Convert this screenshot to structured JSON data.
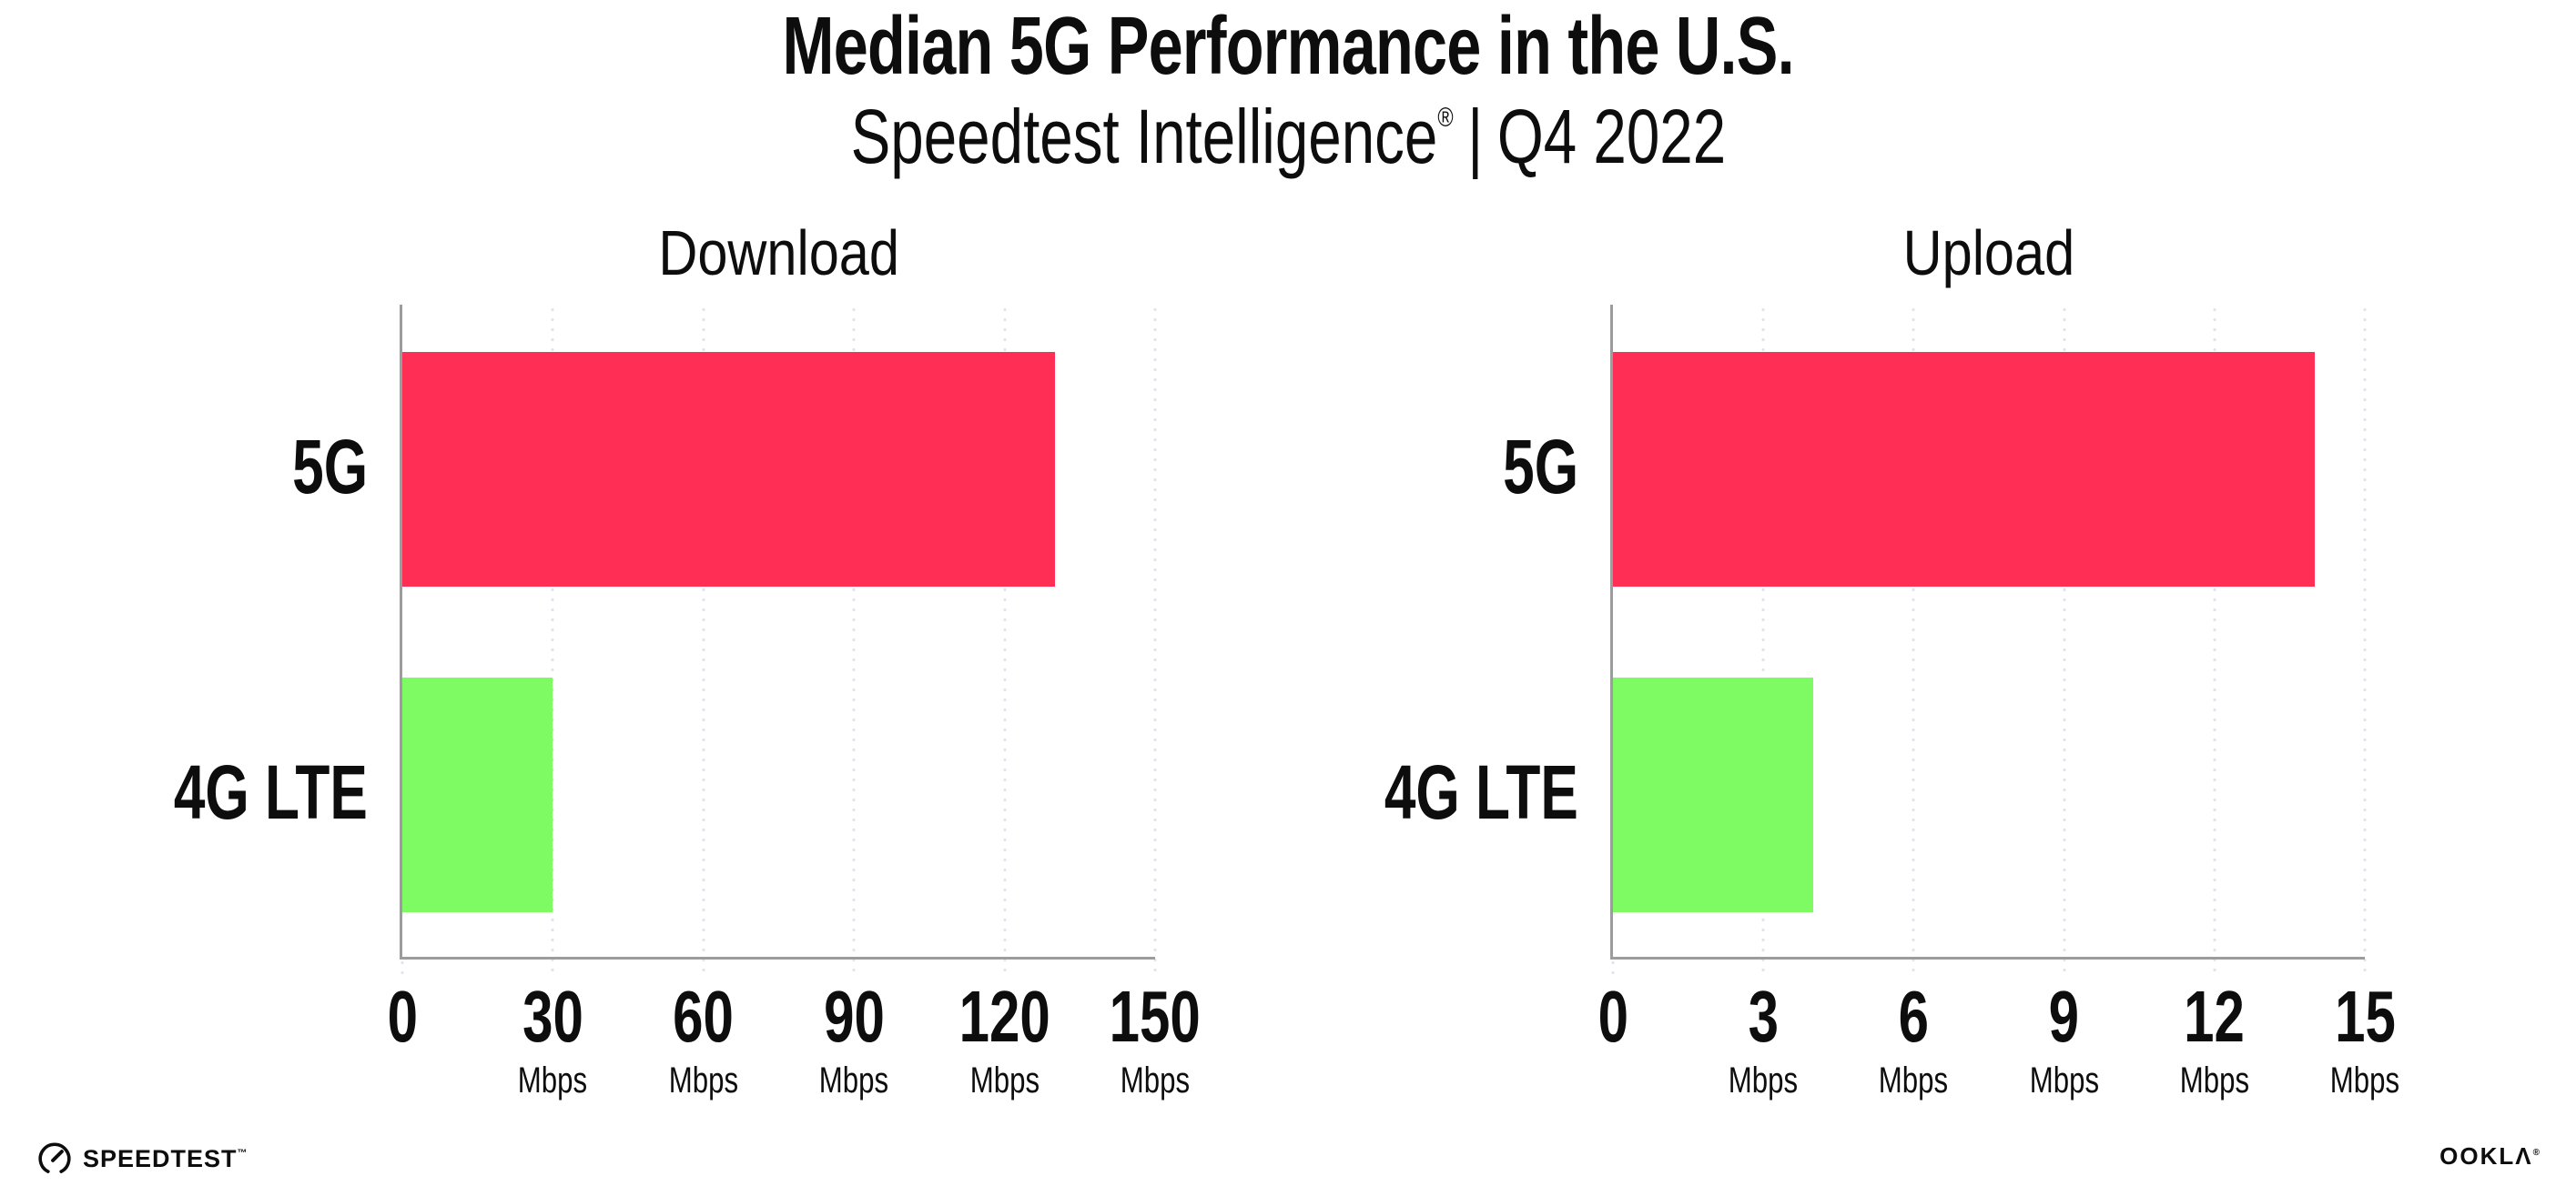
{
  "header": {
    "title": "Median 5G Performance in the U.S.",
    "brand": "Speedtest Intelligence",
    "brand_reg": "®",
    "separator": "|",
    "period": "Q4 2022"
  },
  "chart_data": [
    {
      "type": "bar",
      "orientation": "horizontal",
      "title": "Download",
      "categories": [
        "5G",
        "4G LTE"
      ],
      "values": [
        130,
        30
      ],
      "unit": "Mbps",
      "xlim": [
        0,
        150
      ],
      "xticks": [
        0,
        30,
        60,
        90,
        120,
        150
      ],
      "bar_colors": [
        "#fe2e55",
        "#7efb63"
      ],
      "grid": "vertical-dotted",
      "legend": "none"
    },
    {
      "type": "bar",
      "orientation": "horizontal",
      "title": "Upload",
      "categories": [
        "5G",
        "4G LTE"
      ],
      "values": [
        14,
        4
      ],
      "unit": "Mbps",
      "xlim": [
        0,
        15
      ],
      "xticks": [
        0,
        3,
        6,
        9,
        12,
        15
      ],
      "bar_colors": [
        "#fe2e55",
        "#7efb63"
      ],
      "grid": "vertical-dotted",
      "legend": "none"
    }
  ],
  "footer": {
    "speedtest_wordmark": "SPEEDTEST",
    "speedtest_tm": "™",
    "ookla_wordmark": "OOKLΛ",
    "ookla_reg": "®"
  },
  "colors": {
    "bar_5g": "#fe2e55",
    "bar_4g_lte": "#7efb63",
    "text": "#0d0d0d",
    "axis": "#9c9c9c",
    "grid_dots": "#e3e3ee",
    "background": "#ffffff"
  }
}
